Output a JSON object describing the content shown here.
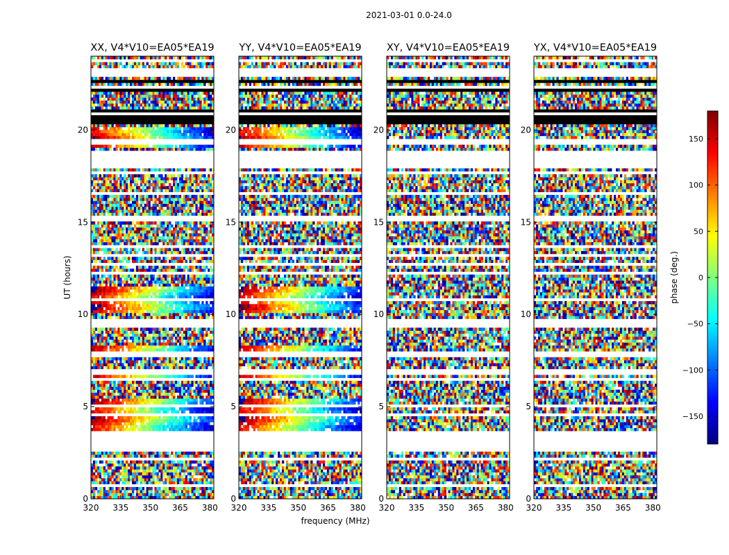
{
  "chart_data": {
    "type": "heatmap",
    "suptitle": "2021-03-01 0.0-24.0",
    "xlabel": "frequency (MHz)",
    "ylabel": "UT (hours)",
    "xlim": [
      320,
      382
    ],
    "ylim": [
      0,
      24
    ],
    "xticks": [
      "320",
      "335",
      "350",
      "365",
      "380"
    ],
    "xtick_values": [
      320,
      335,
      350,
      365,
      380
    ],
    "yticks": [
      "0",
      "5",
      "10",
      "15",
      "20"
    ],
    "ytick_values": [
      0,
      5,
      10,
      15,
      20
    ],
    "panels": [
      {
        "title": "XX, V4*V10=EA05*EA19",
        "correlation": "XX"
      },
      {
        "title": "YY, V4*V10=EA05*EA19",
        "correlation": "YY"
      },
      {
        "title": "XY, V4*V10=EA05*EA19",
        "correlation": "XY"
      },
      {
        "title": "YX, V4*V10=EA05*EA19",
        "correlation": "YX"
      }
    ],
    "colorbar": {
      "label": "phase (deg.)",
      "range": [
        -180,
        180
      ],
      "ticks": [
        "150",
        "100",
        "50",
        "0",
        "−50",
        "−100",
        "−150"
      ],
      "tick_values": [
        150,
        100,
        50,
        0,
        -50,
        -100,
        -150
      ],
      "colormap": "jet"
    },
    "flagged_ut_ranges": [
      [
        2.55,
        3.5
      ],
      [
        1.05,
        1.2
      ],
      [
        18.15,
        18.95
      ],
      [
        17.55,
        17.75
      ],
      [
        19.25,
        19.4
      ],
      [
        15.1,
        15.35
      ],
      [
        13.2,
        13.35
      ],
      [
        12.6,
        12.85
      ],
      [
        9.5,
        9.75
      ],
      [
        7.7,
        7.95
      ],
      [
        6.8,
        7.0
      ],
      [
        4.45,
        4.6
      ],
      [
        22.95,
        23.4
      ]
    ],
    "black_ut_ranges": [
      [
        20.4,
        20.75
      ],
      [
        20.95,
        21.05
      ],
      [
        21.85,
        21.95
      ],
      [
        22.05,
        22.25
      ],
      [
        22.55,
        22.7
      ]
    ]
  }
}
